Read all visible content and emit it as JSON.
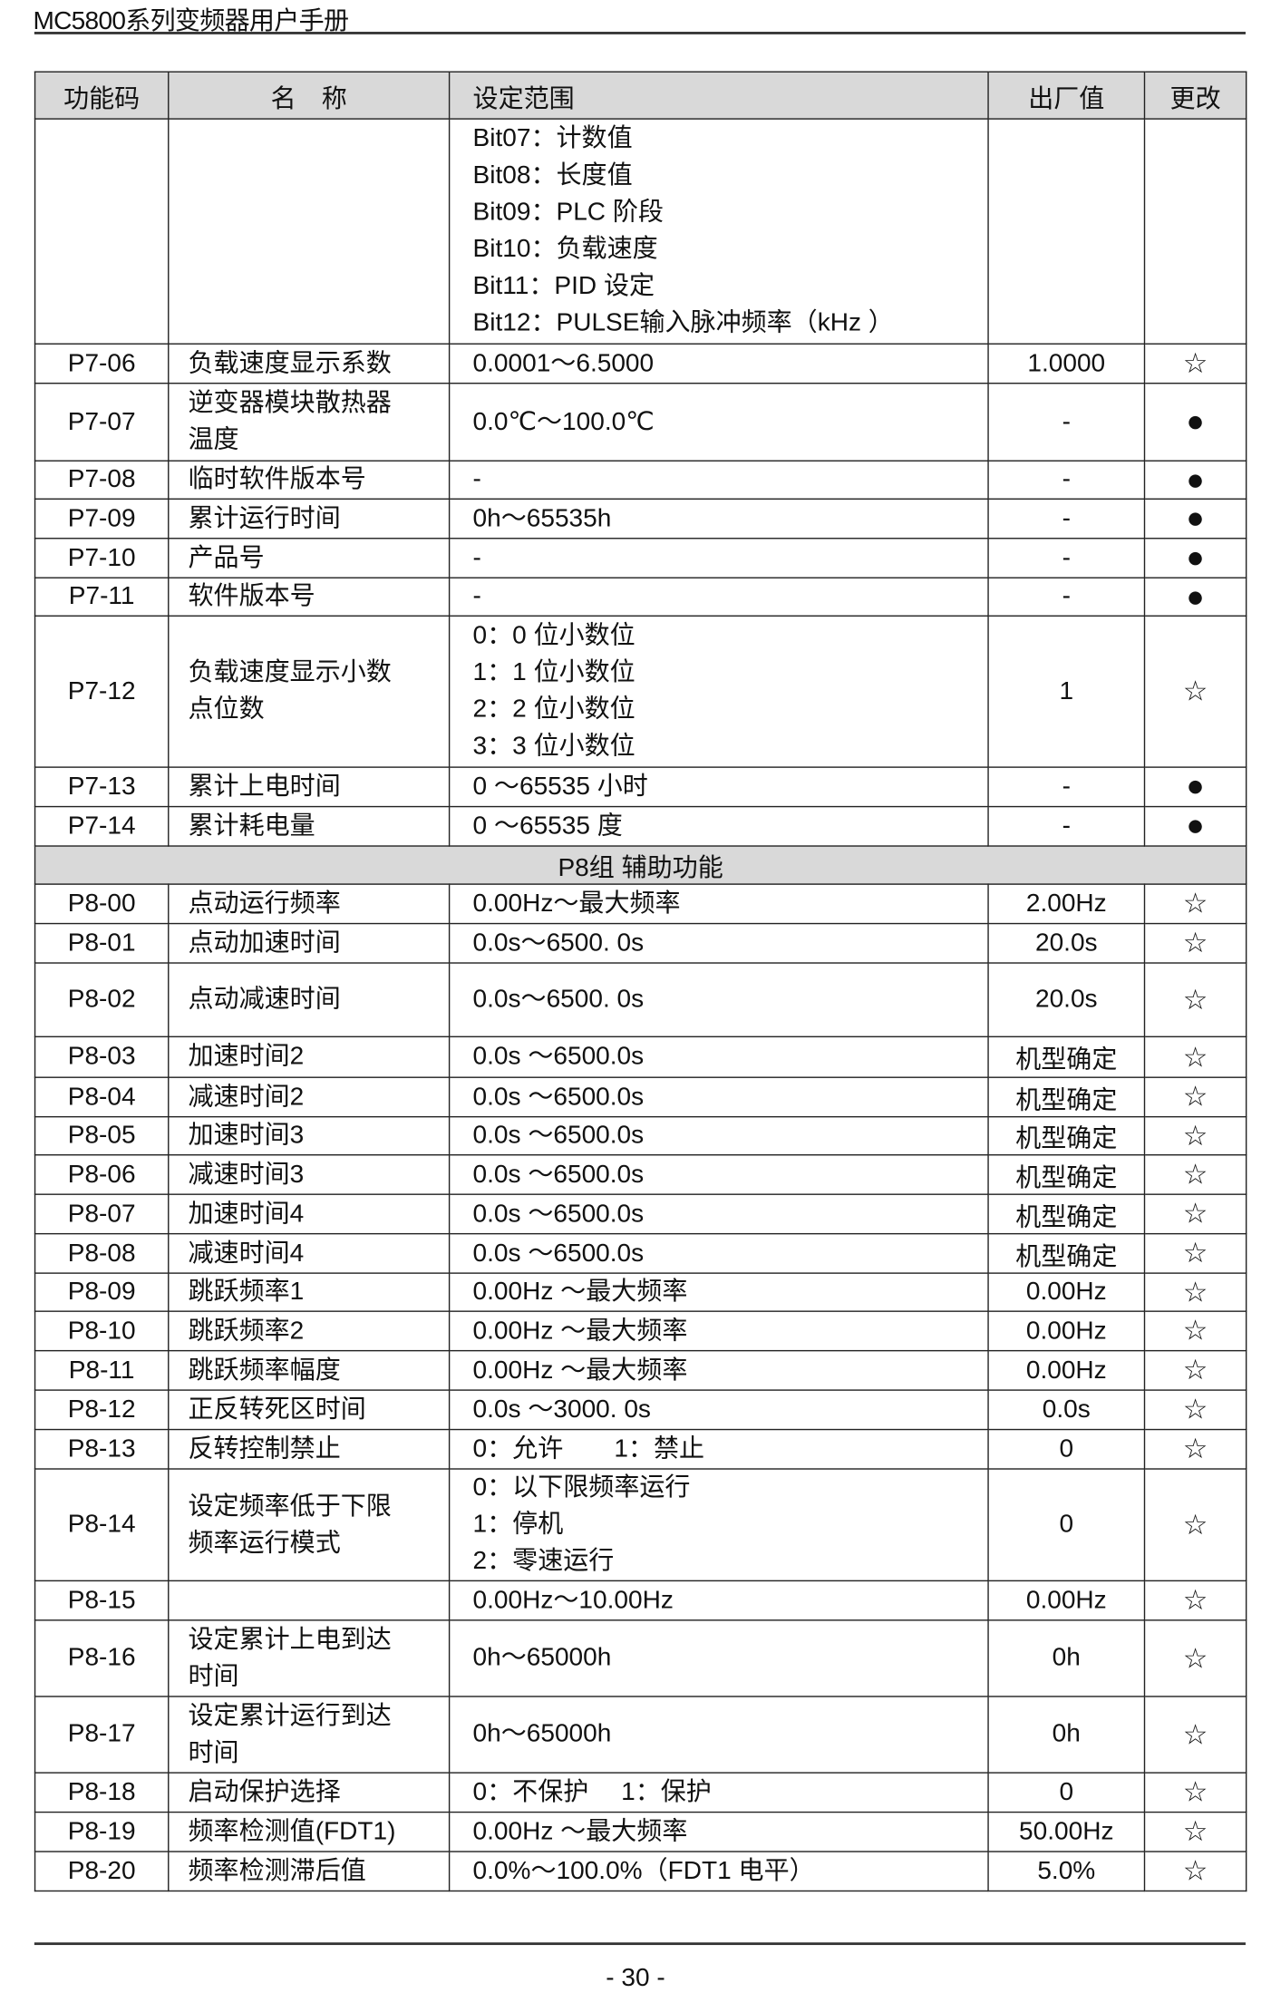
{
  "header": {
    "title": "MC5800系列变频器用户手册"
  },
  "columns": [
    "功能码",
    "名　称",
    "设定范围",
    "出厂值",
    "更改"
  ],
  "rows": [
    {
      "code": "",
      "name": [],
      "range": [
        "Bit07：计数值",
        "Bit08：长度值",
        "Bit09：PLC 阶段",
        "Bit10：负载速度",
        "Bit11：PID 设定",
        "Bit12：PULSE输入脉冲频率（kHz ）"
      ],
      "default": "",
      "change": ""
    },
    {
      "code": "P7-06",
      "name": [
        "负载速度显示系数"
      ],
      "range": [
        "0.0001～6.5000"
      ],
      "default": "1.0000",
      "change": "☆"
    },
    {
      "code": "P7-07",
      "name": [
        "逆变器模块散热器",
        "温度"
      ],
      "range": [
        "0.0℃～100.0℃"
      ],
      "default": "-",
      "change": "●"
    },
    {
      "code": "P7-08",
      "name": [
        "临时软件版本号"
      ],
      "range": [
        "-"
      ],
      "default": "-",
      "change": "●"
    },
    {
      "code": "P7-09",
      "name": [
        "累计运行时间"
      ],
      "range": [
        "0h～65535h"
      ],
      "default": "-",
      "change": "●"
    },
    {
      "code": "P7-10",
      "name": [
        "产品号"
      ],
      "range": [
        "-"
      ],
      "default": "-",
      "change": "●"
    },
    {
      "code": "P7-11",
      "name": [
        "软件版本号"
      ],
      "range": [
        "-"
      ],
      "default": "-",
      "change": "●"
    },
    {
      "code": "P7-12",
      "name": [
        "负载速度显示小数",
        "点位数"
      ],
      "range": [
        "0：0 位小数位",
        "1：1 位小数位",
        "2：2 位小数位",
        "3：3 位小数位"
      ],
      "default": "1",
      "change": "☆"
    },
    {
      "code": "P7-13",
      "name": [
        "累计上电时间"
      ],
      "range": [
        "0 ～65535 小时"
      ],
      "default": "-",
      "change": "●"
    },
    {
      "code": "P7-14",
      "name": [
        "累计耗电量"
      ],
      "range": [
        "0 ～65535 度"
      ],
      "default": "-",
      "change": "●"
    },
    {
      "group": "P8组 辅助功能"
    },
    {
      "code": "P8-00",
      "name": [
        "点动运行频率"
      ],
      "range": [
        "0.00Hz～最大频率"
      ],
      "default": "2.00Hz",
      "change": "☆"
    },
    {
      "code": "P8-01",
      "name": [
        "点动加速时间"
      ],
      "range": [
        "0.0s～6500. 0s"
      ],
      "default": "20.0s",
      "change": "☆"
    },
    {
      "code": "P8-02",
      "name": [
        "点动减速时间"
      ],
      "range": [
        "0.0s～6500. 0s"
      ],
      "default": "20.0s",
      "change": "☆"
    },
    {
      "code": "P8-03",
      "name": [
        "加速时间2"
      ],
      "range": [
        "0.0s ～6500.0s"
      ],
      "default": "机型确定",
      "change": "☆"
    },
    {
      "code": "P8-04",
      "name": [
        "减速时间2"
      ],
      "range": [
        "0.0s ～6500.0s"
      ],
      "default": "机型确定",
      "change": "☆"
    },
    {
      "code": "P8-05",
      "name": [
        "加速时间3"
      ],
      "range": [
        "0.0s ～6500.0s"
      ],
      "default": "机型确定",
      "change": "☆"
    },
    {
      "code": "P8-06",
      "name": [
        "减速时间3"
      ],
      "range": [
        "0.0s ～6500.0s"
      ],
      "default": "机型确定",
      "change": "☆"
    },
    {
      "code": "P8-07",
      "name": [
        "加速时间4"
      ],
      "range": [
        "0.0s ～6500.0s"
      ],
      "default": "机型确定",
      "change": "☆"
    },
    {
      "code": "P8-08",
      "name": [
        "减速时间4"
      ],
      "range": [
        "0.0s ～6500.0s"
      ],
      "default": "机型确定",
      "change": "☆"
    },
    {
      "code": "P8-09",
      "name": [
        "跳跃频率1"
      ],
      "range": [
        "0.00Hz ～最大频率"
      ],
      "default": "0.00Hz",
      "change": "☆"
    },
    {
      "code": "P8-10",
      "name": [
        "跳跃频率2"
      ],
      "range": [
        "0.00Hz ～最大频率"
      ],
      "default": "0.00Hz",
      "change": "☆"
    },
    {
      "code": "P8-11",
      "name": [
        "跳跃频率幅度"
      ],
      "range": [
        "0.00Hz ～最大频率"
      ],
      "default": "0.00Hz",
      "change": "☆"
    },
    {
      "code": "P8-12",
      "name": [
        "正反转死区时间"
      ],
      "range": [
        "0.0s ～3000. 0s"
      ],
      "default": "0.0s",
      "change": "☆"
    },
    {
      "code": "P8-13",
      "name": [
        "反转控制禁止"
      ],
      "range": [
        "0：允许　　1：禁止"
      ],
      "default": "0",
      "change": "☆"
    },
    {
      "code": "P8-14",
      "name": [
        "设定频率低于下限",
        "频率运行模式"
      ],
      "range": [
        "0：以下限频率运行",
        "1：停机",
        "2：零速运行"
      ],
      "default": "0",
      "change": "☆"
    },
    {
      "code": "P8-15",
      "name": [],
      "range": [
        "0.00Hz～10.00Hz"
      ],
      "default": "0.00Hz",
      "change": "☆"
    },
    {
      "code": "P8-16",
      "name": [
        "设定累计上电到达",
        "时间"
      ],
      "range": [
        "0h～65000h"
      ],
      "default": "0h",
      "change": "☆"
    },
    {
      "code": "P8-17",
      "name": [
        "设定累计运行到达",
        "时间"
      ],
      "range": [
        "0h～65000h"
      ],
      "default": "0h",
      "change": "☆"
    },
    {
      "code": "P8-18",
      "name": [
        "启动保护选择"
      ],
      "range": [
        "0：不保护　 1：保护"
      ],
      "default": "0",
      "change": "☆"
    },
    {
      "code": "P8-19",
      "name": [
        "频率检测值(FDT1)"
      ],
      "range": [
        "0.00Hz ～最大频率"
      ],
      "default": "50.00Hz",
      "change": "☆"
    },
    {
      "code": "P8-20",
      "name": [
        "频率检测滞后值"
      ],
      "range": [
        "0.0%～100.0%（FDT1 电平）"
      ],
      "default": "5.0%",
      "change": "☆"
    }
  ],
  "footer": {
    "page_number": "- 30 -"
  }
}
